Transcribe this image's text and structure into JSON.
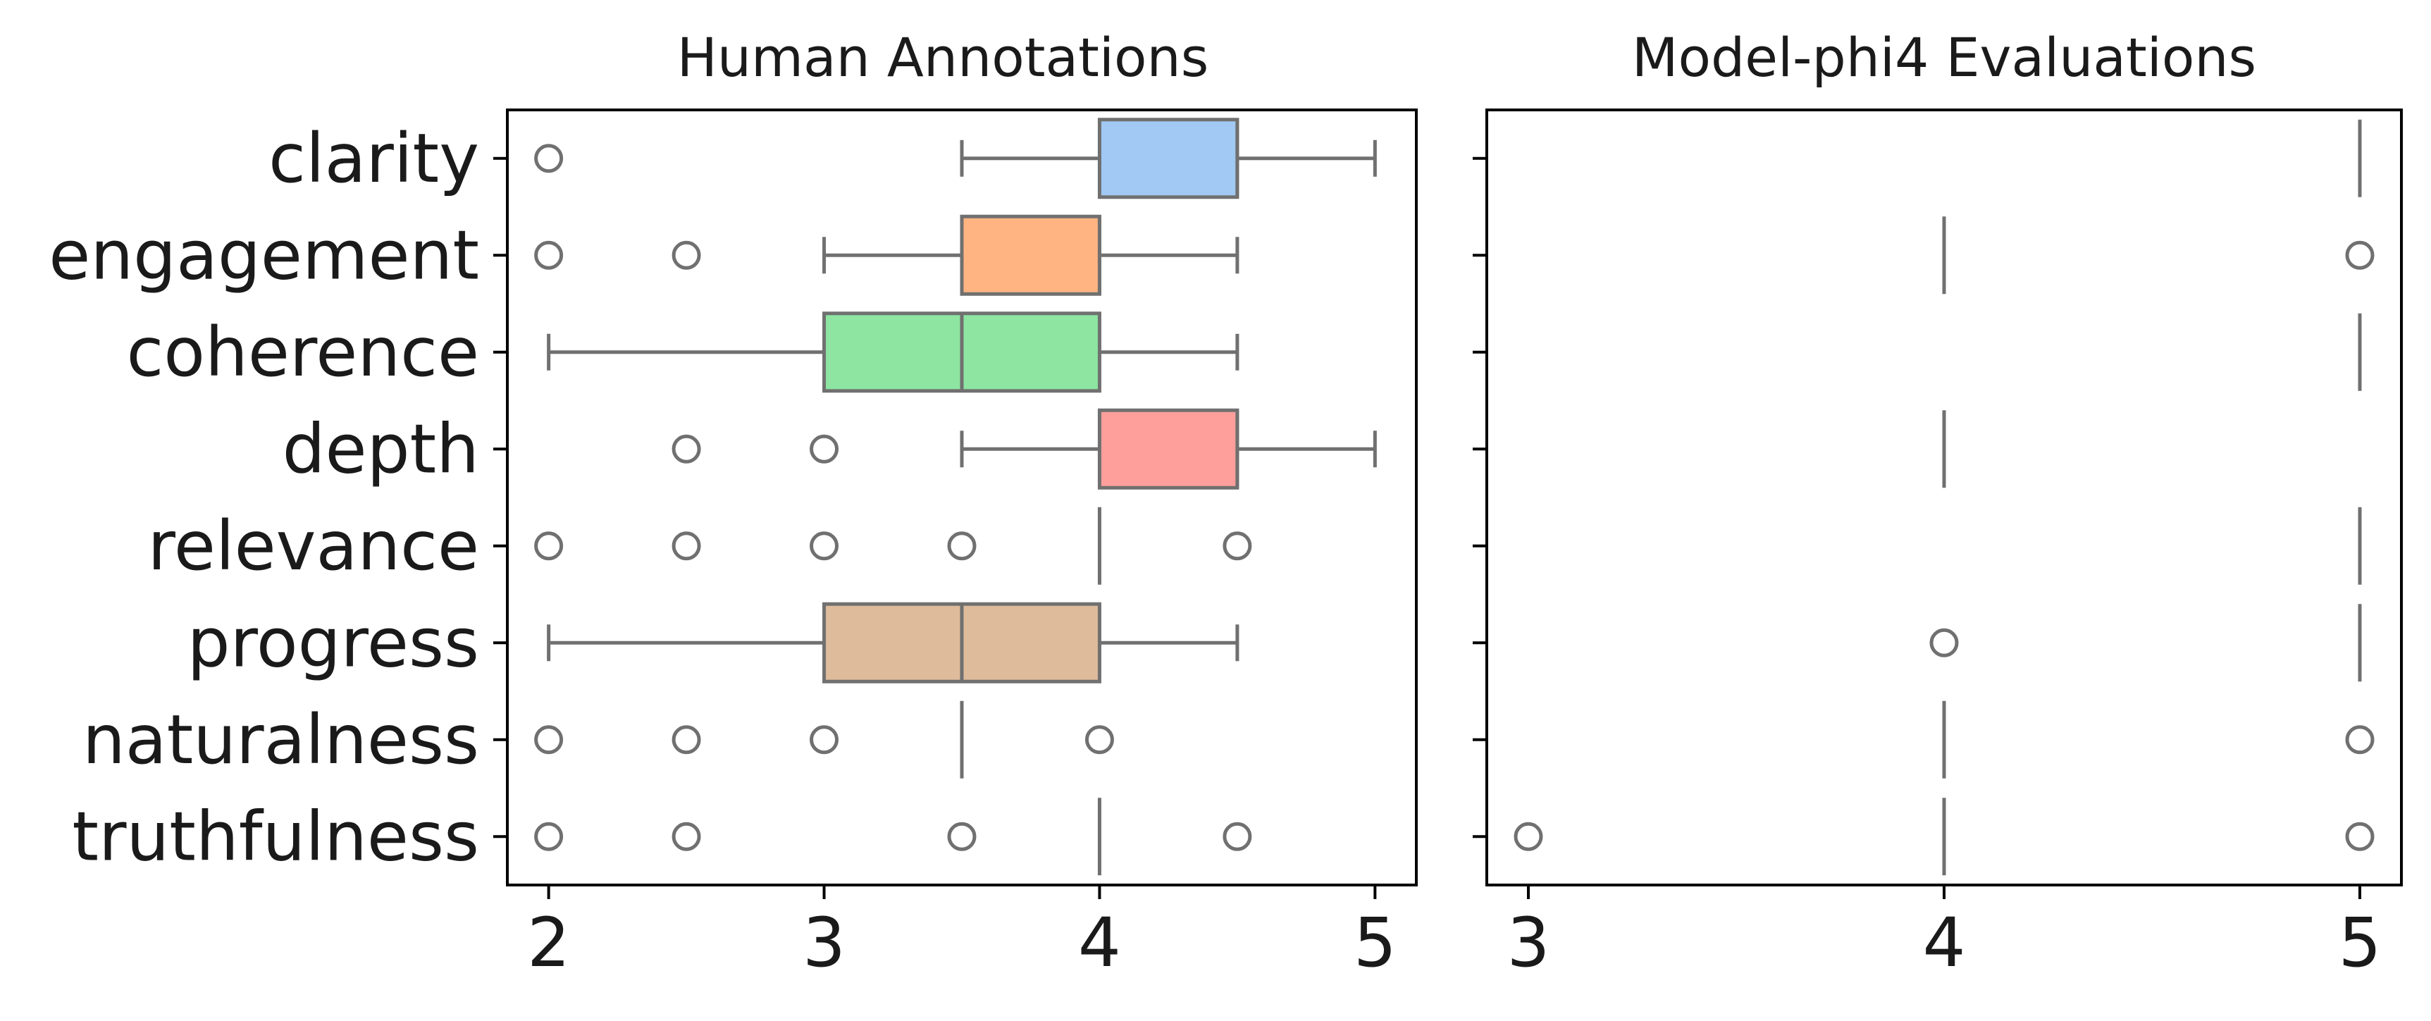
{
  "chart_data": [
    {
      "type": "box",
      "title": "Human Annotations",
      "orientation": "horizontal",
      "xlim": [
        1.85,
        5.15
      ],
      "xticks": [
        2,
        3,
        4,
        5
      ],
      "categories": [
        "clarity",
        "engagement",
        "coherence",
        "depth",
        "relevance",
        "progress",
        "naturalness",
        "truthfulness"
      ],
      "boxes": [
        {
          "category": "clarity",
          "color": "#a1c9f4",
          "q1": 4.0,
          "median": 4.5,
          "q3": 4.5,
          "whisker_low": 3.5,
          "whisker_high": 5.0,
          "outliers": [
            2.0
          ]
        },
        {
          "category": "engagement",
          "color": "#ffb482",
          "q1": 3.5,
          "median": 4.0,
          "q3": 4.0,
          "whisker_low": 3.0,
          "whisker_high": 4.5,
          "outliers": [
            2.0,
            2.5
          ]
        },
        {
          "category": "coherence",
          "color": "#8de5a1",
          "q1": 3.0,
          "median": 3.5,
          "q3": 4.0,
          "whisker_low": 2.0,
          "whisker_high": 4.5,
          "outliers": []
        },
        {
          "category": "depth",
          "color": "#ff9f9b",
          "q1": 4.0,
          "median": 4.5,
          "q3": 4.5,
          "whisker_low": 3.5,
          "whisker_high": 5.0,
          "outliers": [
            2.5,
            3.0
          ]
        },
        {
          "category": "relevance",
          "color": "#d0bbff",
          "q1": 4.0,
          "median": 4.0,
          "q3": 4.0,
          "whisker_low": 4.0,
          "whisker_high": 4.0,
          "outliers": [
            2.0,
            2.5,
            3.0,
            3.5,
            4.5
          ]
        },
        {
          "category": "progress",
          "color": "#debb9b",
          "q1": 3.0,
          "median": 3.5,
          "q3": 4.0,
          "whisker_low": 2.0,
          "whisker_high": 4.5,
          "outliers": []
        },
        {
          "category": "naturalness",
          "color": "#fab0e4",
          "q1": 3.5,
          "median": 3.5,
          "q3": 3.5,
          "whisker_low": 3.5,
          "whisker_high": 3.5,
          "outliers": [
            2.0,
            2.5,
            3.0,
            4.0
          ]
        },
        {
          "category": "truthfulness",
          "color": "#cfcfcf",
          "q1": 4.0,
          "median": 4.0,
          "q3": 4.0,
          "whisker_low": 4.0,
          "whisker_high": 4.0,
          "outliers": [
            2.0,
            2.5,
            3.5,
            4.5
          ]
        }
      ]
    },
    {
      "type": "box",
      "title": "Model-phi4 Evaluations",
      "orientation": "horizontal",
      "xlim": [
        2.9,
        5.1
      ],
      "xticks": [
        3,
        4,
        5
      ],
      "categories": [
        "clarity",
        "engagement",
        "coherence",
        "depth",
        "relevance",
        "progress",
        "naturalness",
        "truthfulness"
      ],
      "boxes": [
        {
          "category": "clarity",
          "color": "#a1c9f4",
          "q1": 5,
          "median": 5,
          "q3": 5,
          "whisker_low": 5,
          "whisker_high": 5,
          "outliers": []
        },
        {
          "category": "engagement",
          "color": "#ffb482",
          "q1": 4,
          "median": 4,
          "q3": 4,
          "whisker_low": 4,
          "whisker_high": 4,
          "outliers": [
            5
          ]
        },
        {
          "category": "coherence",
          "color": "#8de5a1",
          "q1": 5,
          "median": 5,
          "q3": 5,
          "whisker_low": 5,
          "whisker_high": 5,
          "outliers": []
        },
        {
          "category": "depth",
          "color": "#ff9f9b",
          "q1": 4,
          "median": 4,
          "q3": 4,
          "whisker_low": 4,
          "whisker_high": 4,
          "outliers": []
        },
        {
          "category": "relevance",
          "color": "#d0bbff",
          "q1": 5,
          "median": 5,
          "q3": 5,
          "whisker_low": 5,
          "whisker_high": 5,
          "outliers": []
        },
        {
          "category": "progress",
          "color": "#debb9b",
          "q1": 5,
          "median": 5,
          "q3": 5,
          "whisker_low": 5,
          "whisker_high": 5,
          "outliers": [
            4
          ]
        },
        {
          "category": "naturalness",
          "color": "#fab0e4",
          "q1": 4,
          "median": 4,
          "q3": 4,
          "whisker_low": 4,
          "whisker_high": 4,
          "outliers": [
            5
          ]
        },
        {
          "category": "truthfulness",
          "color": "#cfcfcf",
          "q1": 4,
          "median": 4,
          "q3": 4,
          "whisker_low": 4,
          "whisker_high": 4,
          "outliers": [
            3,
            5
          ]
        }
      ]
    }
  ],
  "style": {
    "line_color": "#707070",
    "axis_color": "#000000",
    "background": "#ffffff"
  }
}
